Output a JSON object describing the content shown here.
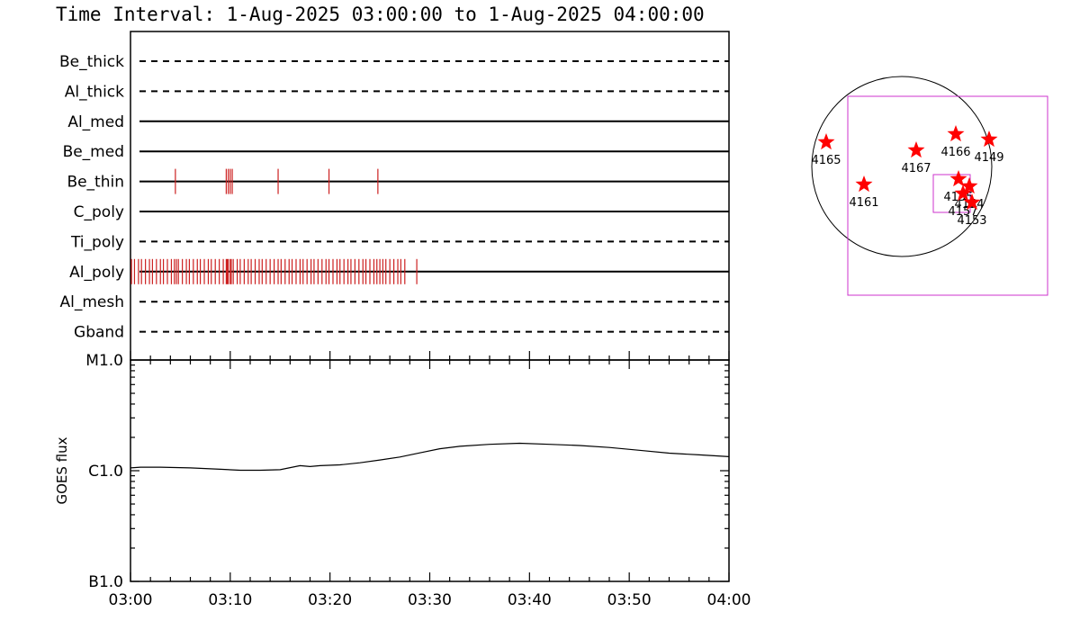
{
  "page": {
    "title": "Time Interval:  1-Aug-2025 03:00:00 to  1-Aug-2025 04:00:00"
  },
  "colors": {
    "axes": "#000000",
    "event_tick": "#cc2020",
    "star": "#ff0000",
    "fov_box": "#cc33cc",
    "limb": "#000000"
  },
  "chart_data": [
    {
      "type": "timeline",
      "name": "attenuator/filter state timeline",
      "x_tick_labels": [
        "03:00",
        "03:10",
        "03:20",
        "03:30",
        "03:40",
        "03:50",
        "04:00"
      ],
      "xlim_minutes": [
        0,
        60
      ],
      "rows": [
        {
          "label": "Be_thick",
          "style": "dashed",
          "events_min": []
        },
        {
          "label": "Al_thick",
          "style": "dashed",
          "events_min": []
        },
        {
          "label": "Al_med",
          "style": "solid",
          "events_min": []
        },
        {
          "label": "Be_med",
          "style": "solid",
          "events_min": []
        },
        {
          "label": "Be_thin",
          "style": "solid",
          "events_min": [
            4.5,
            9.6,
            9.8,
            10.0,
            10.2,
            14.8,
            19.9,
            24.8
          ]
        },
        {
          "label": "C_poly",
          "style": "solid",
          "events_min": []
        },
        {
          "label": "Ti_poly",
          "style": "dashed",
          "events_min": []
        },
        {
          "label": "Al_poly",
          "style": "solid",
          "events_min": [
            0.1,
            0.4,
            0.8,
            1.1,
            1.5,
            1.9,
            2.2,
            2.6,
            3.0,
            3.3,
            3.7,
            4.1,
            4.4,
            4.6,
            4.8,
            5.2,
            5.6,
            5.9,
            6.3,
            6.7,
            7.0,
            7.4,
            7.8,
            8.1,
            8.5,
            8.9,
            9.3,
            9.6,
            9.7,
            9.8,
            10.0,
            10.1,
            10.3,
            10.7,
            11.0,
            11.4,
            11.8,
            12.1,
            12.5,
            12.9,
            13.2,
            13.6,
            14.0,
            14.4,
            14.8,
            15.1,
            15.5,
            15.9,
            16.2,
            16.6,
            17.0,
            17.3,
            17.7,
            18.1,
            18.4,
            18.8,
            19.2,
            19.6,
            19.9,
            20.3,
            20.7,
            21.0,
            21.4,
            21.8,
            22.1,
            22.5,
            22.9,
            23.3,
            23.6,
            24.0,
            24.4,
            24.7,
            25.0,
            25.3,
            25.6,
            26.0,
            26.4,
            26.8,
            27.1,
            27.5,
            28.7
          ]
        },
        {
          "label": "Al_mesh",
          "style": "dashed",
          "events_min": []
        },
        {
          "label": "Gband",
          "style": "dashed",
          "events_min": []
        }
      ]
    },
    {
      "type": "line",
      "name": "GOES flux",
      "ylabel": "GOES flux",
      "y_scale": "log",
      "y_tick_labels": [
        {
          "text": "M1.0",
          "value": 1e-05
        },
        {
          "text": "C1.0",
          "value": 1e-06
        },
        {
          "text": "B1.0",
          "value": 1e-07
        }
      ],
      "ylim": [
        1e-07,
        1e-05
      ],
      "x_tick_labels": [
        "03:00",
        "03:10",
        "03:20",
        "03:30",
        "03:40",
        "03:50",
        "04:00"
      ],
      "xlim_minutes": [
        0,
        60
      ],
      "series": [
        {
          "x_min": [
            0,
            1,
            3,
            6,
            9,
            11,
            13,
            15,
            17,
            18,
            19,
            21,
            23,
            25,
            27,
            29,
            31,
            33,
            36,
            39,
            42,
            45,
            48,
            51,
            54,
            57,
            60
          ],
          "y": [
            1.06e-06,
            1.075e-06,
            1.075e-06,
            1.06e-06,
            1.03e-06,
            1.01e-06,
            1.01e-06,
            1.02e-06,
            1.11e-06,
            1.09e-06,
            1.11e-06,
            1.13e-06,
            1.18e-06,
            1.25e-06,
            1.33e-06,
            1.45e-06,
            1.58e-06,
            1.66e-06,
            1.73e-06,
            1.77e-06,
            1.73e-06,
            1.69e-06,
            1.62e-06,
            1.53e-06,
            1.44e-06,
            1.39e-06,
            1.34e-06
          ]
        }
      ]
    },
    {
      "type": "scatter",
      "name": "solar active regions map",
      "points": [
        {
          "label": "4165",
          "x": -0.84,
          "y": 0.27
        },
        {
          "label": "4161",
          "x": -0.42,
          "y": -0.2
        },
        {
          "label": "4167",
          "x": 0.16,
          "y": 0.18
        },
        {
          "label": "4166",
          "x": 0.6,
          "y": 0.36
        },
        {
          "label": "4149",
          "x": 0.97,
          "y": 0.3
        },
        {
          "label": "4155",
          "x": 0.63,
          "y": -0.14
        },
        {
          "label": "4154",
          "x": 0.75,
          "y": -0.22
        },
        {
          "label": "4157",
          "x": 0.68,
          "y": -0.3
        },
        {
          "label": "4153",
          "x": 0.78,
          "y": -0.4
        }
      ]
    }
  ]
}
